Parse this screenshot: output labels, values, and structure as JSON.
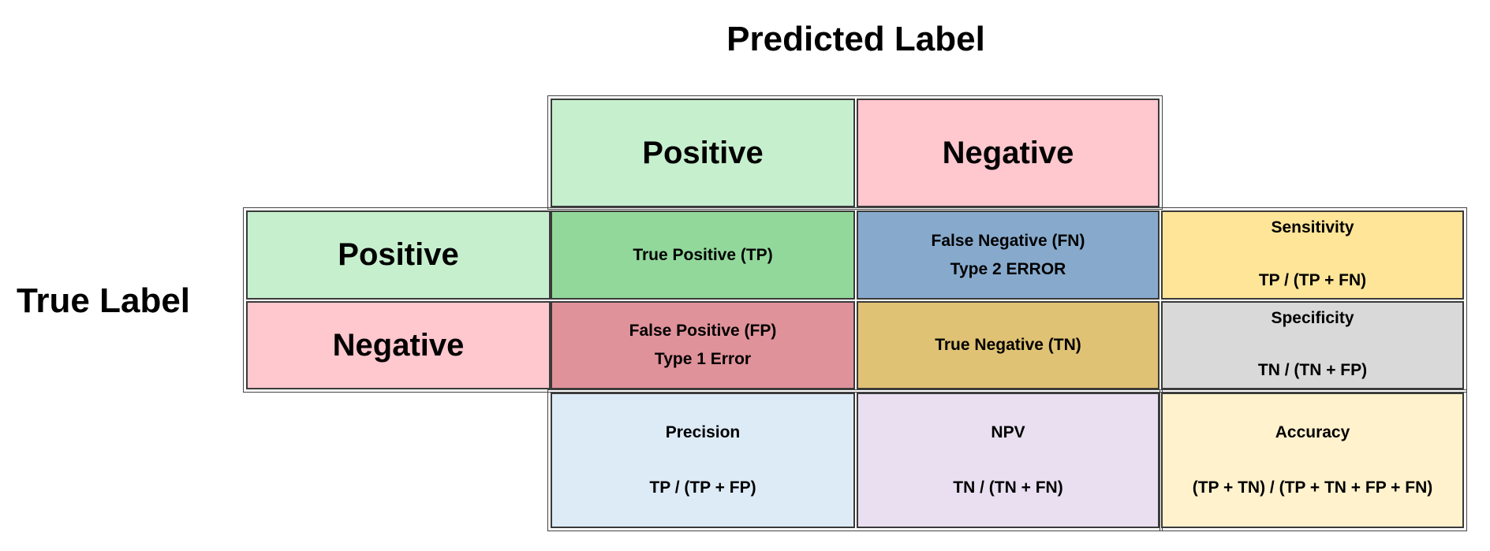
{
  "titles": {
    "predicted": "Predicted Label",
    "true": "True Label"
  },
  "predicted_headers": {
    "positive": "Positive",
    "negative": "Negative"
  },
  "true_headers": {
    "positive": "Positive",
    "negative": "Negative"
  },
  "matrix": {
    "tp": {
      "line1": "True Positive (TP)"
    },
    "fn": {
      "line1": "False Negative (FN)",
      "line2": "Type 2 ERROR"
    },
    "fp": {
      "line1": "False Positive (FP)",
      "line2": "Type 1 Error"
    },
    "tn": {
      "line1": "True Negative (TN)"
    }
  },
  "metrics": {
    "sensitivity": {
      "name": "Sensitivity",
      "formula": "TP / (TP + FN)"
    },
    "specificity": {
      "name": "Specificity",
      "formula": "TN / (TN + FP)"
    },
    "precision": {
      "name": "Precision",
      "formula": "TP / (TP + FP)"
    },
    "npv": {
      "name": "NPV",
      "formula": "TN / (TN + FN)"
    },
    "accuracy": {
      "name": "Accuracy",
      "formula": "(TP + TN) / (TP + TN + FP + FN)"
    }
  },
  "colors": {
    "positive_header": "#c6efce",
    "negative_header": "#ffc7ce",
    "tp": "#92d89b",
    "fn": "#87aacc",
    "fp": "#e0929a",
    "tn": "#dfc274",
    "sensitivity": "#ffe598",
    "specificity": "#d9d9d9",
    "precision": "#ddebf7",
    "npv": "#e9dff0",
    "accuracy": "#fff2cc"
  }
}
